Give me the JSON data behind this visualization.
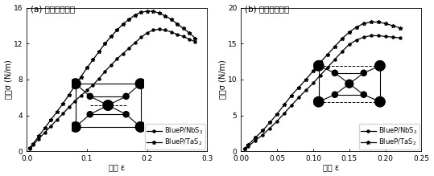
{
  "panel_a": {
    "title": "(a) 沿锅齿形方向",
    "xlabel": "应变 ε",
    "ylabel": "应力σ (N/m)",
    "xlim": [
      0.0,
      0.3
    ],
    "ylim": [
      0,
      16
    ],
    "xticks": [
      0.0,
      0.1,
      0.2,
      0.3
    ],
    "yticks": [
      0,
      4,
      8,
      12,
      16
    ],
    "NbS2_x": [
      0.005,
      0.01,
      0.02,
      0.03,
      0.04,
      0.05,
      0.06,
      0.07,
      0.08,
      0.09,
      0.1,
      0.11,
      0.12,
      0.13,
      0.14,
      0.15,
      0.16,
      0.17,
      0.18,
      0.19,
      0.2,
      0.21,
      0.22,
      0.23,
      0.24,
      0.25,
      0.26,
      0.27,
      0.28
    ],
    "NbS2_y": [
      0.3,
      0.7,
      1.4,
      2.1,
      2.8,
      3.5,
      4.2,
      4.9,
      5.6,
      6.2,
      6.8,
      7.4,
      8.1,
      8.9,
      9.6,
      10.3,
      10.9,
      11.5,
      12.1,
      12.7,
      13.2,
      13.5,
      13.6,
      13.5,
      13.3,
      13.0,
      12.8,
      12.5,
      12.2
    ],
    "TaS2_x": [
      0.005,
      0.01,
      0.02,
      0.03,
      0.04,
      0.05,
      0.06,
      0.07,
      0.08,
      0.09,
      0.1,
      0.11,
      0.12,
      0.13,
      0.14,
      0.15,
      0.16,
      0.17,
      0.18,
      0.19,
      0.2,
      0.21,
      0.22,
      0.23,
      0.24,
      0.25,
      0.26,
      0.27,
      0.28
    ],
    "TaS2_y": [
      0.4,
      0.8,
      1.7,
      2.6,
      3.5,
      4.4,
      5.3,
      6.3,
      7.3,
      8.3,
      9.3,
      10.2,
      11.1,
      12.0,
      12.8,
      13.5,
      14.2,
      14.7,
      15.2,
      15.5,
      15.6,
      15.6,
      15.4,
      15.1,
      14.7,
      14.2,
      13.7,
      13.2,
      12.6
    ]
  },
  "panel_b": {
    "title": "(b) 沿扶手椅方向",
    "xlabel": "应变 ε",
    "ylabel": "应力σ (N/m)",
    "xlim": [
      0.0,
      0.25
    ],
    "ylim": [
      0,
      20
    ],
    "xticks": [
      0.0,
      0.05,
      0.1,
      0.15,
      0.2,
      0.25
    ],
    "yticks": [
      0,
      5,
      10,
      15,
      20
    ],
    "NbS2_x": [
      0.005,
      0.01,
      0.02,
      0.03,
      0.04,
      0.05,
      0.06,
      0.07,
      0.08,
      0.09,
      0.1,
      0.11,
      0.12,
      0.13,
      0.14,
      0.15,
      0.16,
      0.17,
      0.18,
      0.19,
      0.2,
      0.21,
      0.22
    ],
    "NbS2_y": [
      0.35,
      0.7,
      1.5,
      2.3,
      3.2,
      4.2,
      5.3,
      6.4,
      7.5,
      8.5,
      9.5,
      10.6,
      11.7,
      12.8,
      13.9,
      14.9,
      15.5,
      15.9,
      16.1,
      16.1,
      16.0,
      15.9,
      15.8
    ],
    "TaS2_x": [
      0.005,
      0.01,
      0.02,
      0.03,
      0.04,
      0.05,
      0.06,
      0.07,
      0.08,
      0.09,
      0.1,
      0.11,
      0.12,
      0.13,
      0.14,
      0.15,
      0.16,
      0.17,
      0.18,
      0.19,
      0.2,
      0.21,
      0.22
    ],
    "TaS2_y": [
      0.4,
      0.9,
      1.9,
      2.9,
      4.0,
      5.2,
      6.5,
      7.8,
      8.9,
      10.0,
      11.2,
      12.4,
      13.5,
      14.6,
      15.7,
      16.6,
      17.3,
      17.8,
      18.0,
      18.0,
      17.8,
      17.5,
      17.2
    ]
  },
  "legend_NbS2": "BlueP/NbS$_2$",
  "legend_TaS2": "BlueP/TaS$_2$",
  "font_size": 7,
  "title_font_size": 7.5
}
